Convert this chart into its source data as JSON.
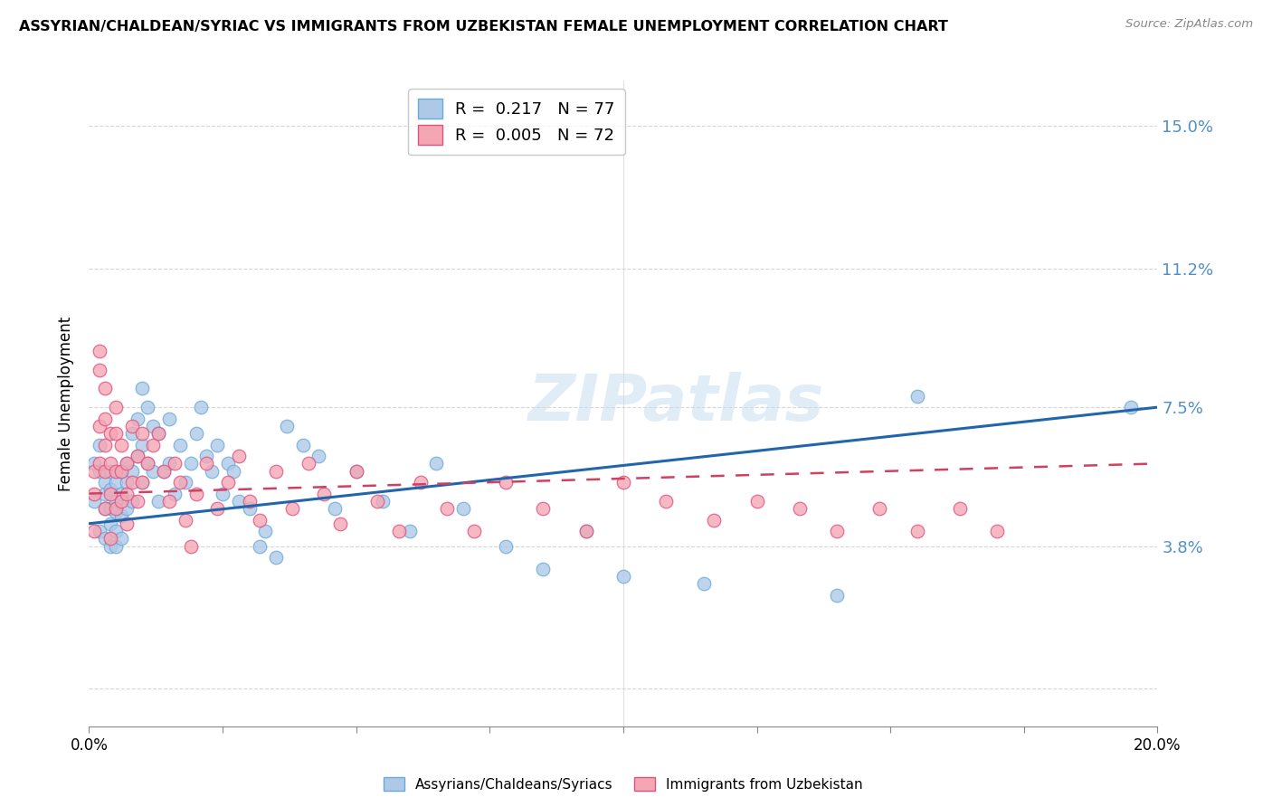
{
  "title": "ASSYRIAN/CHALDEAN/SYRIAC VS IMMIGRANTS FROM UZBEKISTAN FEMALE UNEMPLOYMENT CORRELATION CHART",
  "source": "Source: ZipAtlas.com",
  "ylabel": "Female Unemployment",
  "y_ticks": [
    0.0,
    0.038,
    0.075,
    0.112,
    0.15
  ],
  "y_tick_labels": [
    "",
    "3.8%",
    "7.5%",
    "11.2%",
    "15.0%"
  ],
  "xlim": [
    0.0,
    0.2
  ],
  "ylim": [
    -0.01,
    0.162
  ],
  "legend_R1": "0.217",
  "legend_N1": "77",
  "legend_R2": "0.005",
  "legend_N2": "72",
  "color_blue": "#aec8e8",
  "color_blue_edge": "#6aabd6",
  "color_pink": "#f4a7b3",
  "color_pink_edge": "#e05080",
  "color_line_blue": "#2166ac",
  "color_line_pink": "#d04060",
  "color_right_axis": "#5090c8",
  "watermark_text": "ZIPatlas",
  "blue_line_x": [
    0.0,
    0.2
  ],
  "blue_line_y": [
    0.044,
    0.075
  ],
  "pink_line_x": [
    0.0,
    0.2
  ],
  "pink_line_y": [
    0.052,
    0.06
  ],
  "blue_x": [
    0.001,
    0.001,
    0.002,
    0.002,
    0.002,
    0.003,
    0.003,
    0.003,
    0.003,
    0.004,
    0.004,
    0.004,
    0.004,
    0.004,
    0.005,
    0.005,
    0.005,
    0.005,
    0.005,
    0.006,
    0.006,
    0.006,
    0.006,
    0.007,
    0.007,
    0.007,
    0.008,
    0.008,
    0.008,
    0.009,
    0.009,
    0.01,
    0.01,
    0.01,
    0.011,
    0.011,
    0.012,
    0.012,
    0.013,
    0.013,
    0.014,
    0.015,
    0.015,
    0.016,
    0.017,
    0.018,
    0.019,
    0.02,
    0.021,
    0.022,
    0.023,
    0.024,
    0.025,
    0.026,
    0.027,
    0.028,
    0.03,
    0.032,
    0.033,
    0.035,
    0.037,
    0.04,
    0.043,
    0.046,
    0.05,
    0.055,
    0.06,
    0.065,
    0.07,
    0.078,
    0.085,
    0.093,
    0.1,
    0.115,
    0.14,
    0.155,
    0.195
  ],
  "blue_y": [
    0.06,
    0.05,
    0.065,
    0.058,
    0.042,
    0.055,
    0.052,
    0.048,
    0.04,
    0.058,
    0.053,
    0.048,
    0.044,
    0.038,
    0.055,
    0.05,
    0.047,
    0.042,
    0.038,
    0.058,
    0.052,
    0.046,
    0.04,
    0.06,
    0.055,
    0.048,
    0.068,
    0.058,
    0.05,
    0.072,
    0.062,
    0.08,
    0.065,
    0.055,
    0.075,
    0.06,
    0.07,
    0.058,
    0.068,
    0.05,
    0.058,
    0.072,
    0.06,
    0.052,
    0.065,
    0.055,
    0.06,
    0.068,
    0.075,
    0.062,
    0.058,
    0.065,
    0.052,
    0.06,
    0.058,
    0.05,
    0.048,
    0.038,
    0.042,
    0.035,
    0.07,
    0.065,
    0.062,
    0.048,
    0.058,
    0.05,
    0.042,
    0.06,
    0.048,
    0.038,
    0.032,
    0.042,
    0.03,
    0.028,
    0.025,
    0.078,
    0.075
  ],
  "pink_x": [
    0.001,
    0.001,
    0.001,
    0.002,
    0.002,
    0.002,
    0.002,
    0.003,
    0.003,
    0.003,
    0.003,
    0.003,
    0.004,
    0.004,
    0.004,
    0.004,
    0.005,
    0.005,
    0.005,
    0.005,
    0.006,
    0.006,
    0.006,
    0.007,
    0.007,
    0.007,
    0.008,
    0.008,
    0.009,
    0.009,
    0.01,
    0.01,
    0.011,
    0.012,
    0.013,
    0.014,
    0.015,
    0.016,
    0.017,
    0.018,
    0.019,
    0.02,
    0.022,
    0.024,
    0.026,
    0.028,
    0.03,
    0.032,
    0.035,
    0.038,
    0.041,
    0.044,
    0.047,
    0.05,
    0.054,
    0.058,
    0.062,
    0.067,
    0.072,
    0.078,
    0.085,
    0.093,
    0.1,
    0.108,
    0.117,
    0.125,
    0.133,
    0.14,
    0.148,
    0.155,
    0.163,
    0.17
  ],
  "pink_y": [
    0.058,
    0.052,
    0.042,
    0.09,
    0.085,
    0.07,
    0.06,
    0.08,
    0.072,
    0.065,
    0.058,
    0.048,
    0.068,
    0.06,
    0.052,
    0.04,
    0.075,
    0.068,
    0.058,
    0.048,
    0.065,
    0.058,
    0.05,
    0.06,
    0.052,
    0.044,
    0.07,
    0.055,
    0.062,
    0.05,
    0.068,
    0.055,
    0.06,
    0.065,
    0.068,
    0.058,
    0.05,
    0.06,
    0.055,
    0.045,
    0.038,
    0.052,
    0.06,
    0.048,
    0.055,
    0.062,
    0.05,
    0.045,
    0.058,
    0.048,
    0.06,
    0.052,
    0.044,
    0.058,
    0.05,
    0.042,
    0.055,
    0.048,
    0.042,
    0.055,
    0.048,
    0.042,
    0.055,
    0.05,
    0.045,
    0.05,
    0.048,
    0.042,
    0.048,
    0.042,
    0.048,
    0.042
  ]
}
